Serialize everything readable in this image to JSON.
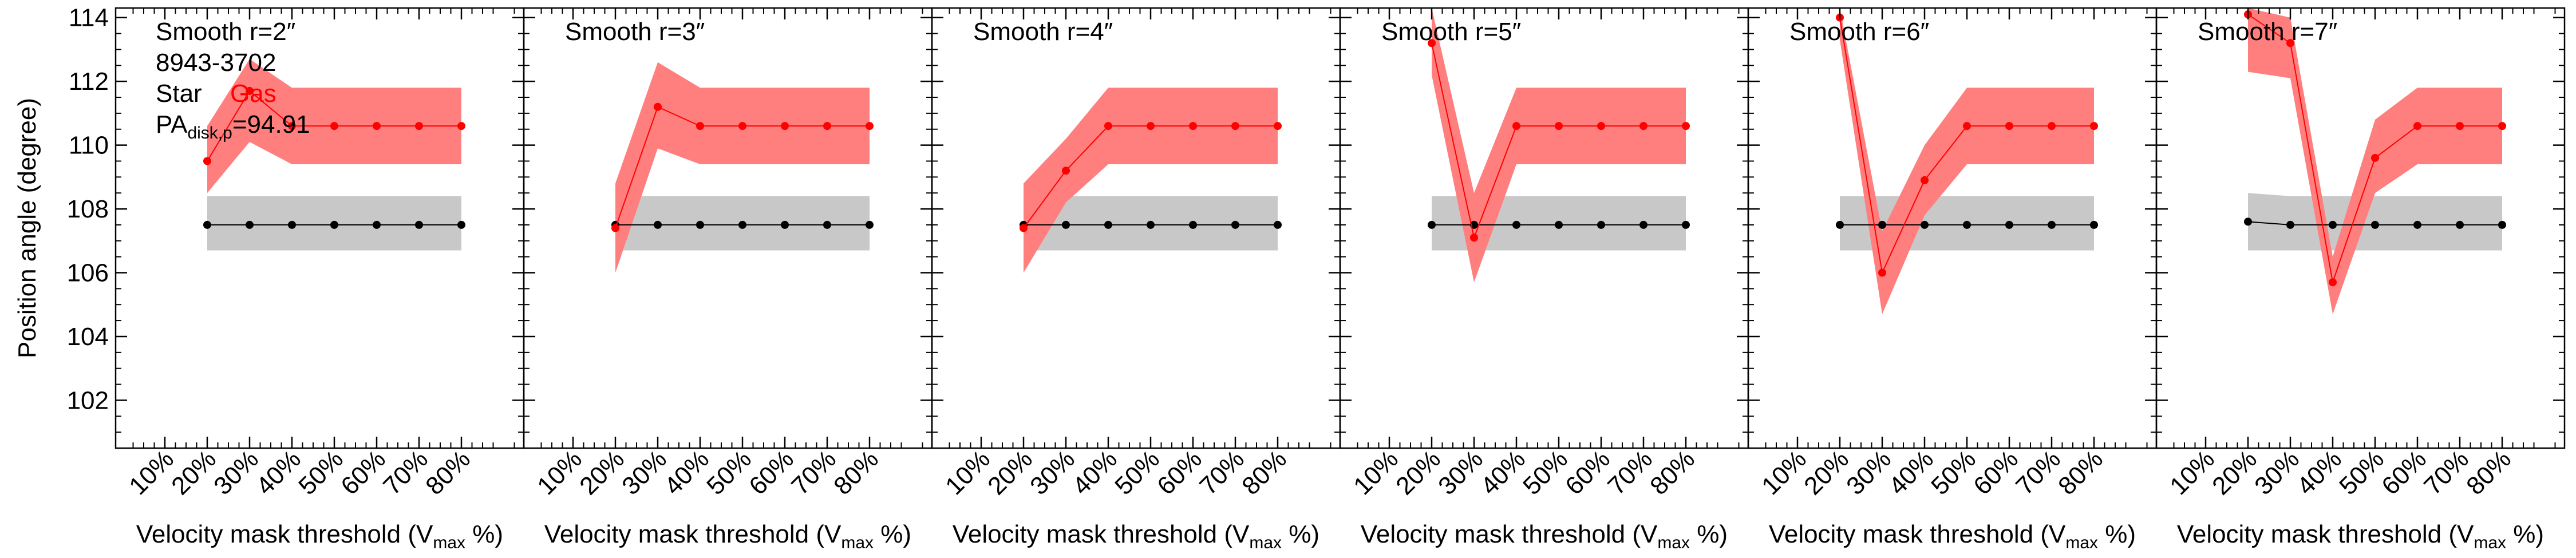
{
  "figure": {
    "ylabel": "Position angle (degree)",
    "annotations": {
      "object_id": "8943-3702",
      "star_label": "Star",
      "gas_label": "Gas",
      "pa_prefix": "PA",
      "pa_sub": "disk,p",
      "pa_value": "=94.91"
    }
  },
  "colors": {
    "gas_line": "#ff0000",
    "gas_band": "#ff7f7f",
    "star_line": "#000000",
    "star_band": "#c8c8c8"
  },
  "chart_data": [
    {
      "type": "line",
      "title": "Smooth r=2″",
      "xlabel_main": "Velocity mask threshold (V",
      "xlabel_sub": "max",
      "xlabel_end": " %)",
      "ylabel": "Position angle (degree)",
      "categories": [
        "10%",
        "20%",
        "30%",
        "40%",
        "50%",
        "60%",
        "70%",
        "80%"
      ],
      "ylim": [
        100.5,
        114.3
      ],
      "yticks": [
        102,
        104,
        106,
        108,
        110,
        112,
        114
      ],
      "series": [
        {
          "name": "Star",
          "x": [
            "20%",
            "30%",
            "40%",
            "50%",
            "60%",
            "70%",
            "80%"
          ],
          "values": [
            107.5,
            107.5,
            107.5,
            107.5,
            107.5,
            107.5,
            107.5
          ],
          "lower": [
            106.7,
            106.7,
            106.7,
            106.7,
            106.7,
            106.7,
            106.7
          ],
          "upper": [
            108.4,
            108.4,
            108.4,
            108.4,
            108.4,
            108.4,
            108.4
          ]
        },
        {
          "name": "Gas",
          "x": [
            "20%",
            "30%",
            "40%",
            "50%",
            "60%",
            "70%",
            "80%"
          ],
          "values": [
            109.5,
            111.7,
            110.6,
            110.6,
            110.6,
            110.6,
            110.6
          ],
          "lower": [
            108.5,
            110.1,
            109.4,
            109.4,
            109.4,
            109.4,
            109.4
          ],
          "upper": [
            110.6,
            112.7,
            111.8,
            111.8,
            111.8,
            111.8,
            111.8
          ]
        }
      ]
    },
    {
      "type": "line",
      "title": "Smooth r=3″",
      "xlabel_main": "Velocity mask threshold (V",
      "xlabel_sub": "max",
      "xlabel_end": " %)",
      "categories": [
        "10%",
        "20%",
        "30%",
        "40%",
        "50%",
        "60%",
        "70%",
        "80%"
      ],
      "ylim": [
        100.5,
        114.3
      ],
      "yticks": [
        102,
        104,
        106,
        108,
        110,
        112,
        114
      ],
      "series": [
        {
          "name": "Star",
          "x": [
            "20%",
            "30%",
            "40%",
            "50%",
            "60%",
            "70%",
            "80%"
          ],
          "values": [
            107.5,
            107.5,
            107.5,
            107.5,
            107.5,
            107.5,
            107.5
          ],
          "lower": [
            106.7,
            106.7,
            106.7,
            106.7,
            106.7,
            106.7,
            106.7
          ],
          "upper": [
            108.4,
            108.4,
            108.4,
            108.4,
            108.4,
            108.4,
            108.4
          ]
        },
        {
          "name": "Gas",
          "x": [
            "20%",
            "30%",
            "40%",
            "50%",
            "60%",
            "70%",
            "80%"
          ],
          "values": [
            107.4,
            111.2,
            110.6,
            110.6,
            110.6,
            110.6,
            110.6
          ],
          "lower": [
            106.0,
            109.9,
            109.4,
            109.4,
            109.4,
            109.4,
            109.4
          ],
          "upper": [
            108.8,
            112.6,
            111.8,
            111.8,
            111.8,
            111.8,
            111.8
          ]
        }
      ]
    },
    {
      "type": "line",
      "title": "Smooth r=4″",
      "xlabel_main": "Velocity mask threshold (V",
      "xlabel_sub": "max",
      "xlabel_end": " %)",
      "categories": [
        "10%",
        "20%",
        "30%",
        "40%",
        "50%",
        "60%",
        "70%",
        "80%"
      ],
      "ylim": [
        100.5,
        114.3
      ],
      "yticks": [
        102,
        104,
        106,
        108,
        110,
        112,
        114
      ],
      "series": [
        {
          "name": "Star",
          "x": [
            "20%",
            "30%",
            "40%",
            "50%",
            "60%",
            "70%",
            "80%"
          ],
          "values": [
            107.5,
            107.5,
            107.5,
            107.5,
            107.5,
            107.5,
            107.5
          ],
          "lower": [
            106.7,
            106.7,
            106.7,
            106.7,
            106.7,
            106.7,
            106.7
          ],
          "upper": [
            108.4,
            108.4,
            108.4,
            108.4,
            108.4,
            108.4,
            108.4
          ]
        },
        {
          "name": "Gas",
          "x": [
            "20%",
            "30%",
            "40%",
            "50%",
            "60%",
            "70%",
            "80%"
          ],
          "values": [
            107.4,
            109.2,
            110.6,
            110.6,
            110.6,
            110.6,
            110.6
          ],
          "lower": [
            106.0,
            108.2,
            109.4,
            109.4,
            109.4,
            109.4,
            109.4
          ],
          "upper": [
            108.8,
            110.2,
            111.8,
            111.8,
            111.8,
            111.8,
            111.8
          ]
        }
      ]
    },
    {
      "type": "line",
      "title": "Smooth r=5″",
      "xlabel_main": "Velocity mask threshold (V",
      "xlabel_sub": "max",
      "xlabel_end": " %)",
      "categories": [
        "10%",
        "20%",
        "30%",
        "40%",
        "50%",
        "60%",
        "70%",
        "80%"
      ],
      "ylim": [
        100.5,
        114.3
      ],
      "yticks": [
        102,
        104,
        106,
        108,
        110,
        112,
        114
      ],
      "series": [
        {
          "name": "Star",
          "x": [
            "20%",
            "30%",
            "40%",
            "50%",
            "60%",
            "70%",
            "80%"
          ],
          "values": [
            107.5,
            107.5,
            107.5,
            107.5,
            107.5,
            107.5,
            107.5
          ],
          "lower": [
            106.7,
            106.7,
            106.7,
            106.7,
            106.7,
            106.7,
            106.7
          ],
          "upper": [
            108.4,
            108.4,
            108.4,
            108.4,
            108.4,
            108.4,
            108.4
          ]
        },
        {
          "name": "Gas",
          "x": [
            "20%",
            "30%",
            "40%",
            "50%",
            "60%",
            "70%",
            "80%"
          ],
          "values": [
            113.2,
            107.1,
            110.6,
            110.6,
            110.6,
            110.6,
            110.6
          ],
          "lower": [
            112.2,
            105.7,
            109.4,
            109.4,
            109.4,
            109.4,
            109.4
          ],
          "upper": [
            114.3,
            108.5,
            111.8,
            111.8,
            111.8,
            111.8,
            111.8
          ]
        }
      ]
    },
    {
      "type": "line",
      "title": "Smooth r=6″",
      "xlabel_main": "Velocity mask threshold (V",
      "xlabel_sub": "max",
      "xlabel_end": " %)",
      "categories": [
        "10%",
        "20%",
        "30%",
        "40%",
        "50%",
        "60%",
        "70%",
        "80%"
      ],
      "ylim": [
        100.5,
        114.3
      ],
      "yticks": [
        102,
        104,
        106,
        108,
        110,
        112,
        114
      ],
      "series": [
        {
          "name": "Star",
          "x": [
            "20%",
            "30%",
            "40%",
            "50%",
            "60%",
            "70%",
            "80%"
          ],
          "values": [
            107.5,
            107.5,
            107.5,
            107.5,
            107.5,
            107.5,
            107.5
          ],
          "lower": [
            106.7,
            106.7,
            106.7,
            106.7,
            106.7,
            106.7,
            106.7
          ],
          "upper": [
            108.4,
            108.4,
            108.4,
            108.4,
            108.4,
            108.4,
            108.4
          ]
        },
        {
          "name": "Gas",
          "x": [
            "20%",
            "30%",
            "40%",
            "50%",
            "60%",
            "70%",
            "80%"
          ],
          "values": [
            114.0,
            106.0,
            108.9,
            110.6,
            110.6,
            110.6,
            110.6
          ],
          "lower": [
            113.3,
            104.7,
            107.8,
            109.4,
            109.4,
            109.4,
            109.4
          ],
          "upper": [
            114.3,
            107.3,
            110.0,
            111.8,
            111.8,
            111.8,
            111.8
          ]
        }
      ]
    },
    {
      "type": "line",
      "title": "Smooth r=7″",
      "xlabel_main": "Velocity mask threshold (V",
      "xlabel_sub": "max",
      "xlabel_end": " %)",
      "categories": [
        "10%",
        "20%",
        "30%",
        "40%",
        "50%",
        "60%",
        "70%",
        "80%"
      ],
      "ylim": [
        100.5,
        114.3
      ],
      "yticks": [
        102,
        104,
        106,
        108,
        110,
        112,
        114
      ],
      "series": [
        {
          "name": "Star",
          "x": [
            "20%",
            "30%",
            "40%",
            "50%",
            "60%",
            "70%",
            "80%"
          ],
          "values": [
            107.6,
            107.5,
            107.5,
            107.5,
            107.5,
            107.5,
            107.5
          ],
          "lower": [
            106.7,
            106.7,
            106.7,
            106.7,
            106.7,
            106.7,
            106.7
          ],
          "upper": [
            108.5,
            108.4,
            108.4,
            108.4,
            108.4,
            108.4,
            108.4
          ]
        },
        {
          "name": "Gas",
          "x": [
            "20%",
            "30%",
            "40%",
            "50%",
            "60%",
            "70%",
            "80%"
          ],
          "values": [
            114.1,
            113.2,
            105.7,
            109.6,
            110.6,
            110.6,
            110.6
          ],
          "lower": [
            112.3,
            112.1,
            104.7,
            108.5,
            109.4,
            109.4,
            109.4
          ],
          "upper": [
            114.3,
            114.0,
            106.5,
            110.8,
            111.8,
            111.8,
            111.8
          ]
        }
      ]
    }
  ]
}
